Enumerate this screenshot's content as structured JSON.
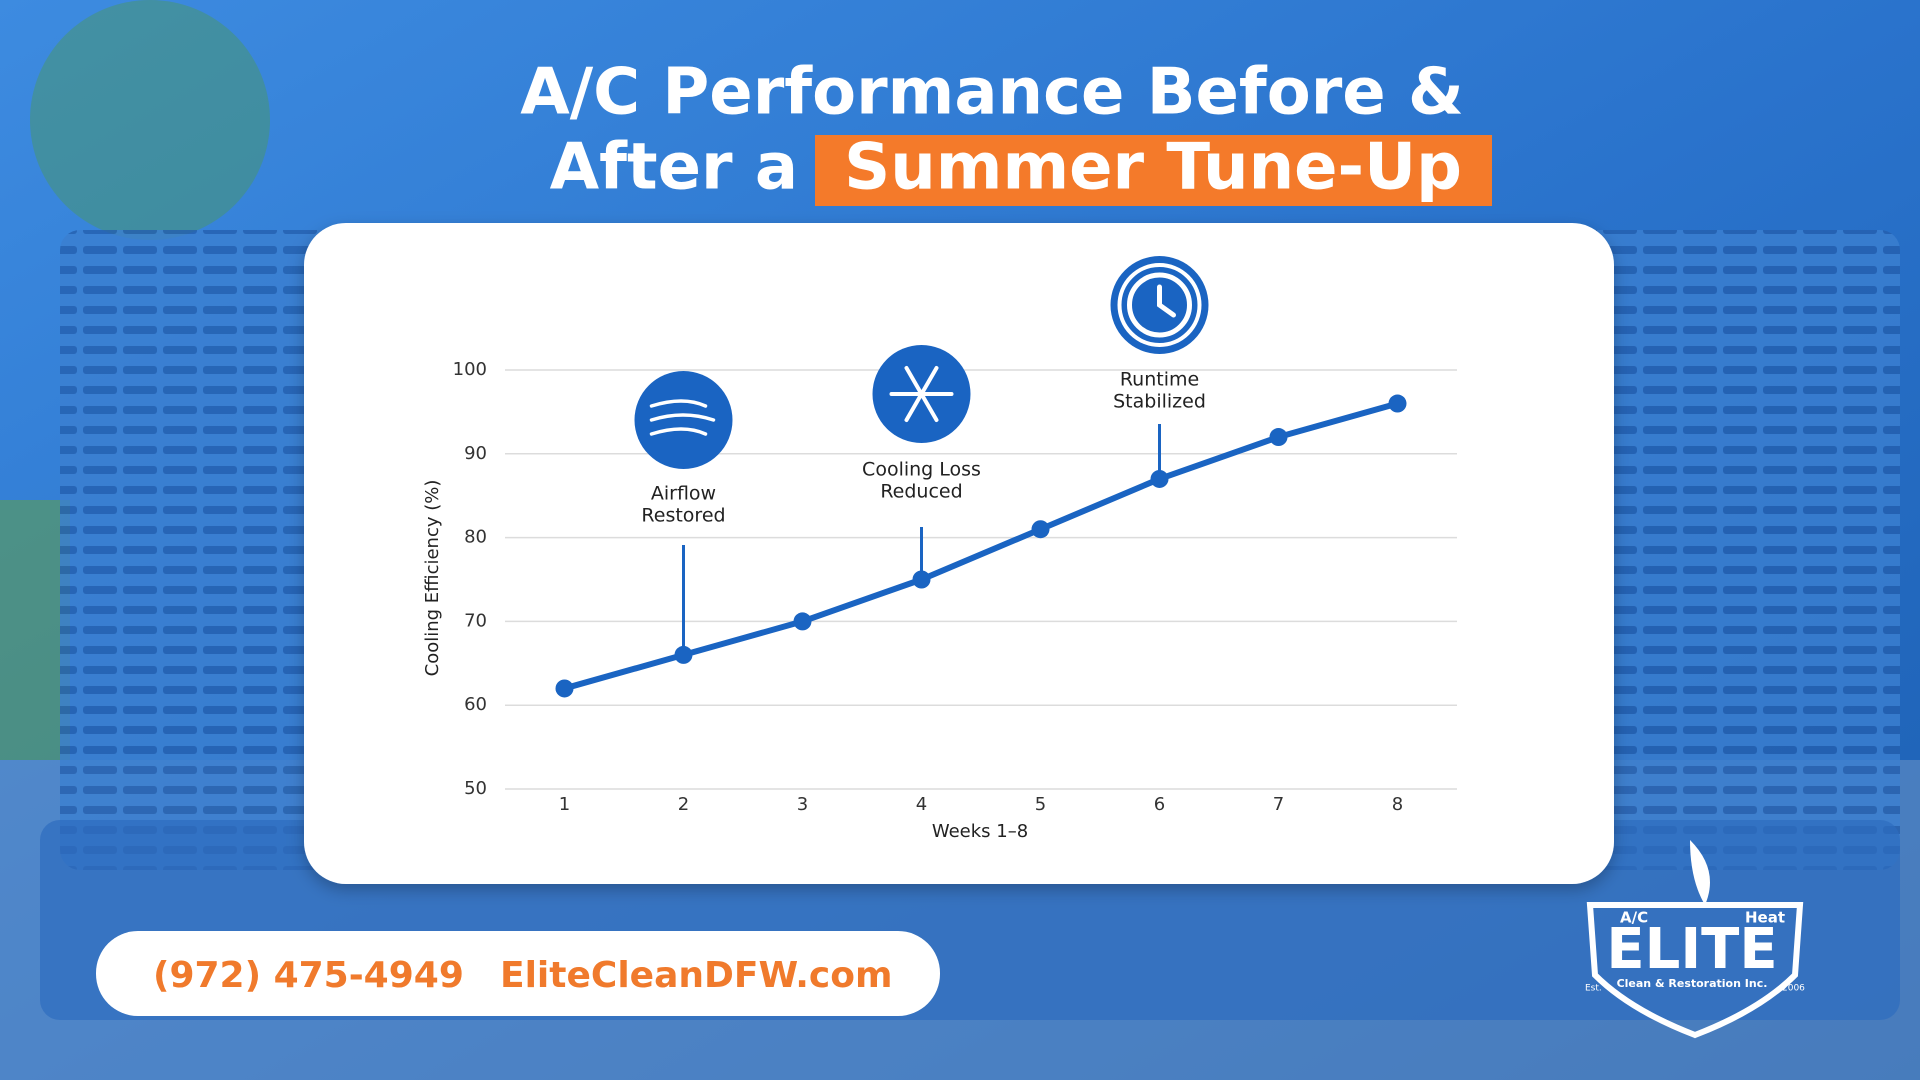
{
  "chart_data": {
    "type": "line",
    "title_line1": "A/C Performance Before &",
    "title_line2": "After a",
    "title_highlight": "Summer Tune-Up",
    "x_label": "Weeks 1–8",
    "y_label": "Cooling Efficiency (%)",
    "x": [
      1,
      2,
      3,
      4,
      5,
      6,
      7,
      8
    ],
    "xlim": [
      0.5,
      8.5
    ],
    "xticks": [
      1,
      2,
      3,
      4,
      5,
      6,
      7,
      8
    ],
    "values": [
      62,
      66,
      70,
      75,
      81,
      87,
      92,
      96
    ],
    "color": "#1a64c2",
    "ylim": [
      50,
      100
    ],
    "yticks": [
      50,
      60,
      70,
      80,
      90,
      100
    ],
    "grid": true,
    "annotations": [
      {
        "x": 2,
        "label_lines": [
          "Airflow",
          "Restored"
        ]
      },
      {
        "x": 4,
        "label_lines": [
          "Cooling Loss",
          "Reduced"
        ]
      },
      {
        "x": 6,
        "label_lines": [
          "Runtime",
          "Stabilized"
        ]
      }
    ]
  },
  "footer": {
    "phone": "(972) 475-4949",
    "website": "EliteCleanDFW.com"
  },
  "logo": {
    "left": "A/C",
    "right": "Heat",
    "name": "ELITE",
    "tagline": "Clean & Restoration Inc.",
    "est": "Est.",
    "year": "2006"
  }
}
